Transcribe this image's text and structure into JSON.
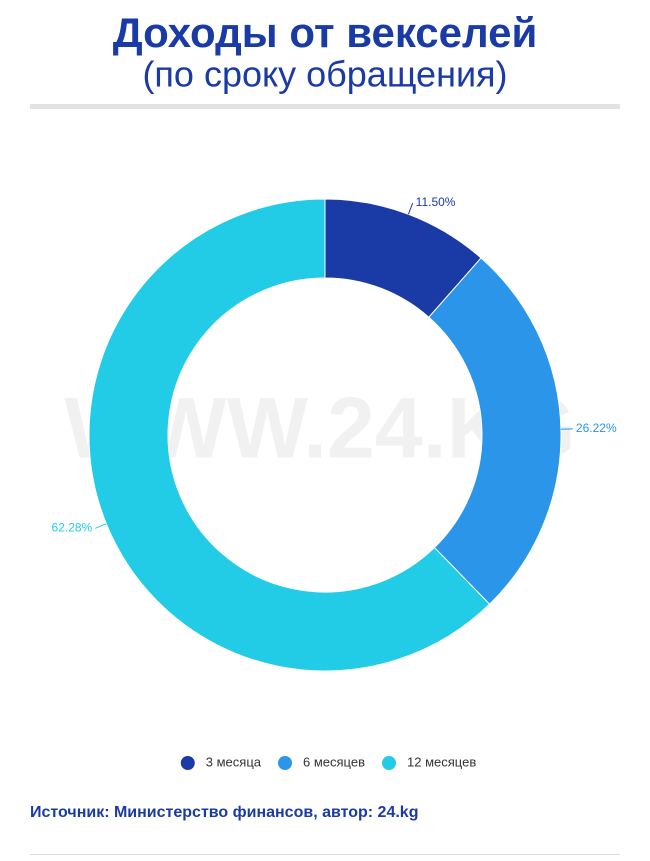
{
  "chart_data": {
    "type": "pie",
    "title": "Доходы от векселей",
    "subtitle": "(по сроку обращения)",
    "watermark": "WWW.24.KG",
    "categories": [
      "3 месяца",
      "6 месяцев",
      "12 месяцев"
    ],
    "values": [
      11.5,
      26.22,
      62.28
    ],
    "value_labels": [
      "11.50%",
      "26.22%",
      "62.28%"
    ],
    "colors": [
      "#1a3aa6",
      "#2b95ea",
      "#22cce6"
    ],
    "legend": "bottom",
    "source": "Источник: Министерство финансов, автор: 24.kg"
  }
}
